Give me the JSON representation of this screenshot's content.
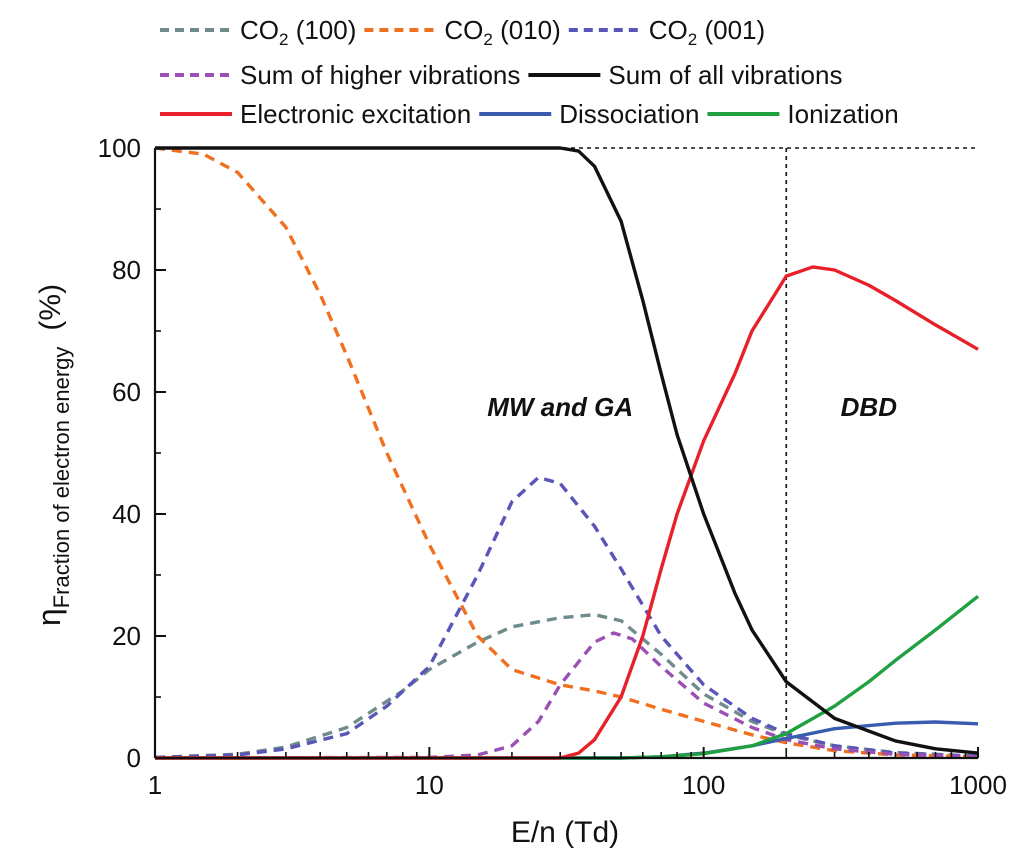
{
  "chart_data": {
    "type": "line",
    "xscale": "log",
    "xlim": [
      1,
      1000
    ],
    "ylim": [
      0,
      100
    ],
    "xticks": [
      "1",
      "10",
      "100",
      "1000"
    ],
    "yticks": [
      "0",
      "20",
      "40",
      "60",
      "80",
      "100"
    ],
    "xlabel": "E/n (Td)",
    "ylabel": {
      "symbol": "η",
      "subscript": "Fraction of electron energy",
      "unit": "(%)"
    },
    "annotations": [
      {
        "text": "MW and GA",
        "x": 30,
        "y": 60
      },
      {
        "text": "DBD",
        "x": 400,
        "y": 60
      }
    ],
    "reference_lines": [
      {
        "orientation": "horizontal",
        "y": 100,
        "style": "dotted"
      },
      {
        "orientation": "vertical",
        "x": 200,
        "style": "dotted"
      }
    ],
    "legend_placement": "top",
    "series": [
      {
        "key": "co2_100",
        "name": "CO",
        "sub": "2",
        "suffix": " (100)",
        "color": "#6f8b8b",
        "dash": "dash",
        "points": [
          [
            1,
            0.1
          ],
          [
            2,
            0.6
          ],
          [
            3,
            1.8
          ],
          [
            5,
            5
          ],
          [
            8,
            11
          ],
          [
            10,
            14.5
          ],
          [
            15,
            19
          ],
          [
            20,
            21.5
          ],
          [
            30,
            23
          ],
          [
            40,
            23.5
          ],
          [
            50,
            22.5
          ],
          [
            70,
            17
          ],
          [
            100,
            10.5
          ],
          [
            150,
            6
          ],
          [
            200,
            3.8
          ],
          [
            300,
            2
          ],
          [
            500,
            0.9
          ],
          [
            1000,
            0.3
          ]
        ]
      },
      {
        "key": "co2_010",
        "name": "CO",
        "sub": "2",
        "suffix": " (010)",
        "color": "#f07020",
        "dash": "dash",
        "points": [
          [
            1,
            100
          ],
          [
            1.5,
            99
          ],
          [
            2,
            96
          ],
          [
            3,
            87
          ],
          [
            4,
            76
          ],
          [
            5,
            66
          ],
          [
            7,
            50
          ],
          [
            10,
            35
          ],
          [
            15,
            20
          ],
          [
            20,
            14.5
          ],
          [
            30,
            12
          ],
          [
            40,
            11
          ],
          [
            50,
            10
          ],
          [
            70,
            8
          ],
          [
            100,
            6
          ],
          [
            150,
            3.8
          ],
          [
            200,
            2.5
          ],
          [
            300,
            1.2
          ],
          [
            500,
            0.5
          ],
          [
            1000,
            0.2
          ]
        ]
      },
      {
        "key": "co2_001",
        "name": "CO",
        "sub": "2",
        "suffix": " (001)",
        "color": "#5a55b8",
        "dash": "dash",
        "points": [
          [
            1,
            0.1
          ],
          [
            2,
            0.5
          ],
          [
            3,
            1.5
          ],
          [
            5,
            4
          ],
          [
            7,
            8.5
          ],
          [
            10,
            15
          ],
          [
            15,
            30
          ],
          [
            20,
            42
          ],
          [
            25,
            46
          ],
          [
            30,
            45
          ],
          [
            40,
            38
          ],
          [
            50,
            31
          ],
          [
            70,
            20
          ],
          [
            100,
            12
          ],
          [
            150,
            6.5
          ],
          [
            200,
            4
          ],
          [
            300,
            2
          ],
          [
            500,
            0.8
          ],
          [
            1000,
            0.3
          ]
        ]
      },
      {
        "key": "higher_vib",
        "name": "Sum of higher vibrations",
        "color": "#9a50b4",
        "dash": "dash",
        "points": [
          [
            1,
            0
          ],
          [
            10,
            0.1
          ],
          [
            15,
            0.5
          ],
          [
            20,
            2
          ],
          [
            25,
            6
          ],
          [
            30,
            12
          ],
          [
            40,
            19
          ],
          [
            47,
            20.5
          ],
          [
            55,
            19.5
          ],
          [
            70,
            15
          ],
          [
            100,
            9
          ],
          [
            150,
            5
          ],
          [
            200,
            3
          ],
          [
            300,
            1.5
          ],
          [
            500,
            0.6
          ],
          [
            1000,
            0.2
          ]
        ]
      },
      {
        "key": "all_vib",
        "name": "Sum of all vibrations",
        "color": "#111111",
        "dash": "solid",
        "points": [
          [
            1,
            100
          ],
          [
            30,
            100
          ],
          [
            35,
            99.5
          ],
          [
            40,
            97
          ],
          [
            50,
            88
          ],
          [
            60,
            75
          ],
          [
            70,
            63
          ],
          [
            80,
            53
          ],
          [
            100,
            40
          ],
          [
            130,
            27
          ],
          [
            150,
            21
          ],
          [
            200,
            12.5
          ],
          [
            300,
            6.5
          ],
          [
            500,
            2.8
          ],
          [
            700,
            1.5
          ],
          [
            1000,
            0.8
          ]
        ]
      },
      {
        "key": "electronic",
        "name": "Electronic excitation",
        "color": "#e8202a",
        "dash": "solid",
        "points": [
          [
            1,
            0
          ],
          [
            30,
            0
          ],
          [
            35,
            0.8
          ],
          [
            40,
            3
          ],
          [
            50,
            10
          ],
          [
            60,
            20
          ],
          [
            70,
            31
          ],
          [
            80,
            40
          ],
          [
            100,
            52
          ],
          [
            130,
            63
          ],
          [
            150,
            70
          ],
          [
            200,
            79
          ],
          [
            250,
            80.5
          ],
          [
            300,
            80
          ],
          [
            400,
            77.5
          ],
          [
            500,
            75
          ],
          [
            700,
            71
          ],
          [
            1000,
            67
          ]
        ]
      },
      {
        "key": "dissociation",
        "name": "Dissociation",
        "color": "#3a5cb0",
        "dash": "solid",
        "points": [
          [
            1,
            0
          ],
          [
            50,
            0
          ],
          [
            70,
            0.2
          ],
          [
            100,
            0.8
          ],
          [
            150,
            2
          ],
          [
            200,
            3.2
          ],
          [
            300,
            4.8
          ],
          [
            500,
            5.7
          ],
          [
            700,
            5.9
          ],
          [
            1000,
            5.6
          ]
        ]
      },
      {
        "key": "ionization",
        "name": "Ionization",
        "color": "#20a040",
        "dash": "solid",
        "points": [
          [
            1,
            0
          ],
          [
            50,
            0
          ],
          [
            70,
            0.2
          ],
          [
            100,
            0.7
          ],
          [
            150,
            2
          ],
          [
            200,
            4
          ],
          [
            300,
            8.5
          ],
          [
            400,
            12.5
          ],
          [
            500,
            16
          ],
          [
            700,
            21
          ],
          [
            1000,
            26.5
          ]
        ]
      }
    ],
    "legend_rows": [
      [
        "co2_100",
        "co2_010",
        "co2_001"
      ],
      [
        "higher_vib",
        "all_vib"
      ],
      [
        "electronic",
        "dissociation",
        "ionization"
      ]
    ]
  }
}
